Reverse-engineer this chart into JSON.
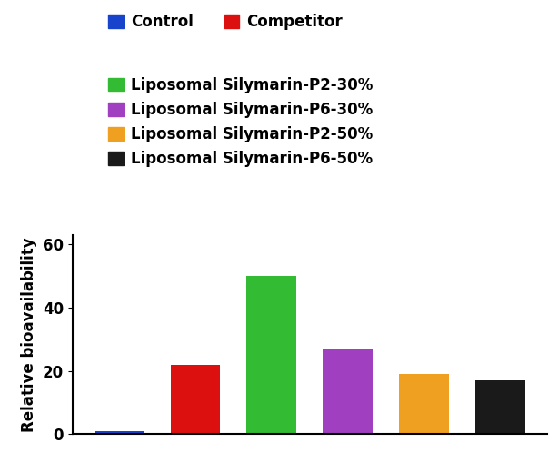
{
  "categories": [
    "Control",
    "Competitor",
    "Liposomal Silymarin-P2-30%",
    "Liposomal Silymarin-P6-30%",
    "Liposomal Silymarin-P2-50%",
    "Liposomal Silymarin-P6-50%"
  ],
  "values": [
    1.0,
    22.0,
    50.0,
    27.0,
    19.0,
    17.0
  ],
  "bar_colors": [
    "#1844CC",
    "#DD1010",
    "#33BB33",
    "#A040C0",
    "#F0A020",
    "#1A1A1A"
  ],
  "ylabel": "Relative bioavailability",
  "ylim": [
    0,
    63
  ],
  "yticks": [
    0,
    20,
    40,
    60
  ],
  "legend_labels": [
    "Control",
    "Competitor",
    "Liposomal Silymarin-P2-30%",
    "Liposomal Silymarin-P6-30%",
    "Liposomal Silymarin-P2-50%",
    "Liposomal Silymarin-P6-50%"
  ],
  "legend_colors": [
    "#1844CC",
    "#DD1010",
    "#33BB33",
    "#A040C0",
    "#F0A020",
    "#1A1A1A"
  ],
  "background_color": "#FFFFFF",
  "bar_width": 0.65,
  "fontsize_legend": 12,
  "fontsize_ylabel": 12,
  "fontsize_ticks": 12
}
